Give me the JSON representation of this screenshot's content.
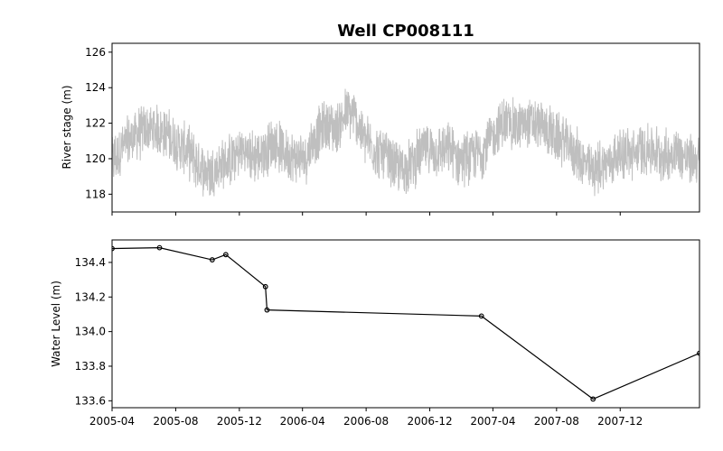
{
  "chart_data": {
    "title": "Well CP008111",
    "x_axis": {
      "type": "date",
      "range": [
        "2005-04-01",
        "2008-05-01"
      ],
      "tick_labels": [
        "2005-04",
        "2005-08",
        "2005-12",
        "2006-04",
        "2006-08",
        "2006-12",
        "2007-04",
        "2007-08",
        "2007-12"
      ],
      "tick_dates": [
        "2005-04-01",
        "2005-08-01",
        "2005-12-01",
        "2006-04-01",
        "2006-08-01",
        "2006-12-01",
        "2007-04-01",
        "2007-08-01",
        "2007-12-01"
      ]
    },
    "panels": [
      {
        "type": "line",
        "ylabel": "River stage (m)",
        "ylim": [
          117.0,
          126.5
        ],
        "yticks": [
          118,
          120,
          122,
          124,
          126
        ],
        "series": [
          {
            "color": "#bfbfbf",
            "noisy": true,
            "points": [
              [
                "2005-04-01",
                119.8
              ],
              [
                "2005-04-20",
                120.6
              ],
              [
                "2005-05-10",
                121.2
              ],
              [
                "2005-06-01",
                121.6
              ],
              [
                "2005-06-25",
                121.7
              ],
              [
                "2005-07-15",
                121.4
              ],
              [
                "2005-08-05",
                120.8
              ],
              [
                "2005-08-25",
                120.4
              ],
              [
                "2005-09-15",
                119.6
              ],
              [
                "2005-10-05",
                119.2
              ],
              [
                "2005-10-25",
                119.6
              ],
              [
                "2005-11-15",
                119.9
              ],
              [
                "2005-12-05",
                120.5
              ],
              [
                "2005-12-25",
                120.1
              ],
              [
                "2006-01-15",
                120.3
              ],
              [
                "2006-02-05",
                120.9
              ],
              [
                "2006-02-25",
                120.4
              ],
              [
                "2006-03-15",
                120.1
              ],
              [
                "2006-04-05",
                120.0
              ],
              [
                "2006-04-25",
                121.2
              ],
              [
                "2006-05-15",
                121.9
              ],
              [
                "2006-06-05",
                121.7
              ],
              [
                "2006-06-25",
                122.6
              ],
              [
                "2006-07-10",
                122.4
              ],
              [
                "2006-07-25",
                121.3
              ],
              [
                "2006-08-15",
                120.6
              ],
              [
                "2006-09-05",
                120.1
              ],
              [
                "2006-09-25",
                119.5
              ],
              [
                "2006-10-15",
                119.4
              ],
              [
                "2006-11-05",
                120.0
              ],
              [
                "2006-11-25",
                120.6
              ],
              [
                "2006-12-15",
                120.4
              ],
              [
                "2007-01-05",
                120.5
              ],
              [
                "2007-01-25",
                120.0
              ],
              [
                "2007-02-15",
                120.1
              ],
              [
                "2007-03-05",
                120.3
              ],
              [
                "2007-03-25",
                120.9
              ],
              [
                "2007-04-10",
                121.7
              ],
              [
                "2007-04-25",
                122.1
              ],
              [
                "2007-05-15",
                121.8
              ],
              [
                "2007-06-05",
                122.0
              ],
              [
                "2007-06-25",
                121.9
              ],
              [
                "2007-07-15",
                121.6
              ],
              [
                "2007-08-05",
                121.1
              ],
              [
                "2007-08-25",
                120.8
              ],
              [
                "2007-09-15",
                120.0
              ],
              [
                "2007-10-05",
                119.3
              ],
              [
                "2007-10-25",
                119.6
              ],
              [
                "2007-11-15",
                119.9
              ],
              [
                "2007-12-05",
                120.4
              ],
              [
                "2007-12-25",
                120.2
              ],
              [
                "2008-01-15",
                120.6
              ],
              [
                "2008-02-05",
                120.4
              ],
              [
                "2008-02-25",
                120.1
              ],
              [
                "2008-03-15",
                120.5
              ],
              [
                "2008-04-05",
                120.0
              ],
              [
                "2008-05-01",
                119.9
              ]
            ]
          }
        ]
      },
      {
        "type": "line",
        "ylabel": "Water Level (m)",
        "ylim": [
          133.56,
          134.53
        ],
        "yticks": [
          133.6,
          133.8,
          134.0,
          134.2,
          134.4
        ],
        "ytick_labels": [
          "133.6",
          "133.8",
          "134.0",
          "134.2",
          "134.4"
        ],
        "series": [
          {
            "color": "#000000",
            "marker": "circle",
            "points": [
              [
                "2005-04-01",
                134.48
              ],
              [
                "2005-07-01",
                134.485
              ],
              [
                "2005-10-10",
                134.415
              ],
              [
                "2005-11-05",
                134.445
              ],
              [
                "2006-01-20",
                134.26
              ],
              [
                "2006-01-23",
                134.125
              ],
              [
                "2007-03-10",
                134.09
              ],
              [
                "2007-10-10",
                133.61
              ],
              [
                "2008-05-01",
                133.875
              ]
            ]
          }
        ]
      }
    ]
  }
}
